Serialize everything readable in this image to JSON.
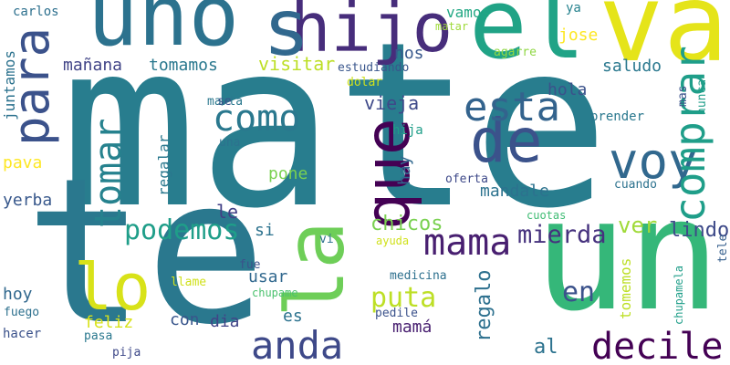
{
  "words": [
    {
      "text": "mate",
      "color": "#287d8e"
    },
    {
      "text": "te",
      "color": "#2a788e"
    },
    {
      "text": "un",
      "color": "#35b779"
    },
    {
      "text": "uno",
      "color": "#2c728e"
    },
    {
      "text": "el",
      "color": "#20a386"
    },
    {
      "text": "va",
      "color": "#e5e419"
    },
    {
      "text": "hijo",
      "color": "#472d7b"
    },
    {
      "text": "para",
      "color": "#3b528b"
    },
    {
      "text": "que",
      "color": "#440154"
    },
    {
      "text": "la",
      "color": "#6ece58"
    },
    {
      "text": "s",
      "color": "#31688e"
    },
    {
      "text": "de",
      "color": "#3b528b"
    },
    {
      "text": "voy",
      "color": "#31688e"
    },
    {
      "text": "comprar",
      "color": "#1f9e89"
    },
    {
      "text": "esta",
      "color": "#33638d"
    },
    {
      "text": "como",
      "color": "#2a788e"
    },
    {
      "text": "tomar",
      "color": "#26828e"
    },
    {
      "text": "lo",
      "color": "#d8e219"
    },
    {
      "text": "mama",
      "color": "#481f70"
    },
    {
      "text": "anda",
      "color": "#3e4989"
    },
    {
      "text": "decile",
      "color": "#440154"
    },
    {
      "text": "podemos",
      "color": "#1f9e89"
    },
    {
      "text": "mierda",
      "color": "#46327e"
    },
    {
      "text": "puta",
      "color": "#bddf26"
    },
    {
      "text": "en",
      "color": "#3b528b"
    },
    {
      "text": "regalo",
      "color": "#2d708e"
    },
    {
      "text": "ver",
      "color": "#a0da39"
    },
    {
      "text": "lindo",
      "color": "#3e4a89"
    },
    {
      "text": "mañana",
      "color": "#414487"
    },
    {
      "text": "tomamos",
      "color": "#2a788e"
    },
    {
      "text": "visitar",
      "color": "#bddf26"
    },
    {
      "text": "vamos",
      "color": "#22a884"
    },
    {
      "text": "jose",
      "color": "#fde725"
    },
    {
      "text": "nos",
      "color": "#38588c"
    },
    {
      "text": "saludo",
      "color": "#2a788e"
    },
    {
      "text": "vieja",
      "color": "#3e4989"
    },
    {
      "text": "hola",
      "color": "#3b528b"
    },
    {
      "text": "mandale",
      "color": "#2c728e"
    },
    {
      "text": "chicos",
      "color": "#7ad151"
    },
    {
      "text": "regalar",
      "color": "#2a788e"
    },
    {
      "text": "pone",
      "color": "#7ad151"
    },
    {
      "text": "hay",
      "color": "#31688e"
    },
    {
      "text": "yerba",
      "color": "#38588c"
    },
    {
      "text": "pava",
      "color": "#fde725"
    },
    {
      "text": "juntamos",
      "color": "#2c728e"
    },
    {
      "text": "carlos",
      "color": "#2d708e"
    },
    {
      "text": "estudiando",
      "color": "#39568c"
    },
    {
      "text": "matar",
      "color": "#9fda3a"
    },
    {
      "text": "agarre",
      "color": "#8fd744"
    },
    {
      "text": "ya",
      "color": "#26828e"
    },
    {
      "text": "marta",
      "color": "#2a788e"
    },
    {
      "text": "dolar",
      "color": "#d0e11c"
    },
    {
      "text": "se",
      "color": "#3b528b"
    },
    {
      "text": "hija",
      "color": "#1f9e89"
    },
    {
      "text": "prender",
      "color": "#2a788e"
    },
    {
      "text": "mas",
      "color": "#3b528b"
    },
    {
      "text": "nunca",
      "color": "#1f9e89"
    },
    {
      "text": "una",
      "color": "#2c728e"
    },
    {
      "text": "oferta",
      "color": "#3e4989"
    },
    {
      "text": "cuando",
      "color": "#2c728e"
    },
    {
      "text": "cuotas",
      "color": "#3fbc73"
    },
    {
      "text": "le",
      "color": "#424086"
    },
    {
      "text": "si",
      "color": "#2c728e"
    },
    {
      "text": "vi",
      "color": "#2d708e"
    },
    {
      "text": "ayuda",
      "color": "#d0e11c"
    },
    {
      "text": "tomemos",
      "color": "#bddf26"
    },
    {
      "text": "chupamela",
      "color": "#1f9e89"
    },
    {
      "text": "tele",
      "color": "#355f8d"
    },
    {
      "text": "hoy",
      "color": "#31688e"
    },
    {
      "text": "fuego",
      "color": "#2d708e"
    },
    {
      "text": "hacer",
      "color": "#3b528b"
    },
    {
      "text": "feliz",
      "color": "#d8e219"
    },
    {
      "text": "usar",
      "color": "#31688e"
    },
    {
      "text": "fue",
      "color": "#3b528b"
    },
    {
      "text": "llame",
      "color": "#d0e11c"
    },
    {
      "text": "chupame",
      "color": "#4ac16d"
    },
    {
      "text": "con",
      "color": "#39568c"
    },
    {
      "text": "dia",
      "color": "#414487"
    },
    {
      "text": "es",
      "color": "#2c728e"
    },
    {
      "text": "medicina",
      "color": "#2d708e"
    },
    {
      "text": "pedile",
      "color": "#3b528b"
    },
    {
      "text": "mamá",
      "color": "#481f70"
    },
    {
      "text": "al",
      "color": "#2c728e"
    },
    {
      "text": "pasa",
      "color": "#2a788e"
    },
    {
      "text": "pija",
      "color": "#3e4989"
    }
  ]
}
